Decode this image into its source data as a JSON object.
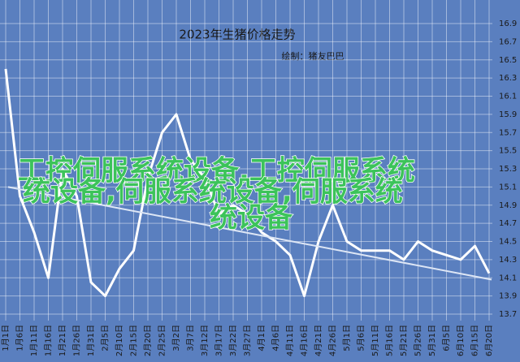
{
  "chart_data": {
    "type": "line",
    "title": "2023年生猪价格走势",
    "subtitle": "绘制：猪友巴巴",
    "categories": [
      "1月1日",
      "1月6日",
      "1月11日",
      "1月16日",
      "1月21日",
      "1月26日",
      "1月31日",
      "2月5日",
      "2月10日",
      "2月15日",
      "2月20日",
      "2月25日",
      "3月2日",
      "3月7日",
      "3月12日",
      "3月17日",
      "3月22日",
      "3月27日",
      "4月1日",
      "4月6日",
      "4月11日",
      "4月16日",
      "4月21日",
      "4月26日",
      "5月1日",
      "5月6日",
      "5月11日",
      "5月16日",
      "5月21日",
      "5月26日",
      "5月31日",
      "6月5日",
      "6月10日",
      "6月15日",
      "6月20日"
    ],
    "values": [
      16.4,
      15.0,
      14.6,
      14.1,
      15.3,
      15.0,
      14.05,
      13.9,
      14.2,
      14.4,
      15.2,
      15.7,
      15.9,
      15.4,
      15.2,
      14.8,
      14.9,
      14.8,
      14.6,
      14.5,
      14.35,
      13.9,
      14.5,
      14.9,
      14.5,
      14.4,
      14.4,
      14.4,
      14.3,
      14.5,
      14.4,
      14.35,
      14.3,
      14.45,
      14.15
    ],
    "color": "#ffffff",
    "trend": [
      15.1,
      14.08
    ],
    "ylim": [
      13.7,
      16.9
    ],
    "yticks": [
      13.7,
      13.9,
      14.1,
      14.3,
      14.5,
      14.7,
      14.9,
      15.1,
      15.3,
      15.5,
      15.7,
      15.9,
      16.1,
      16.3,
      16.5,
      16.7,
      16.9
    ],
    "grid": true
  },
  "watermark": [
    "工控伺服系统设备,工控伺服系统",
    "统设备,伺服系统设备,伺服系统",
    "统设备"
  ]
}
